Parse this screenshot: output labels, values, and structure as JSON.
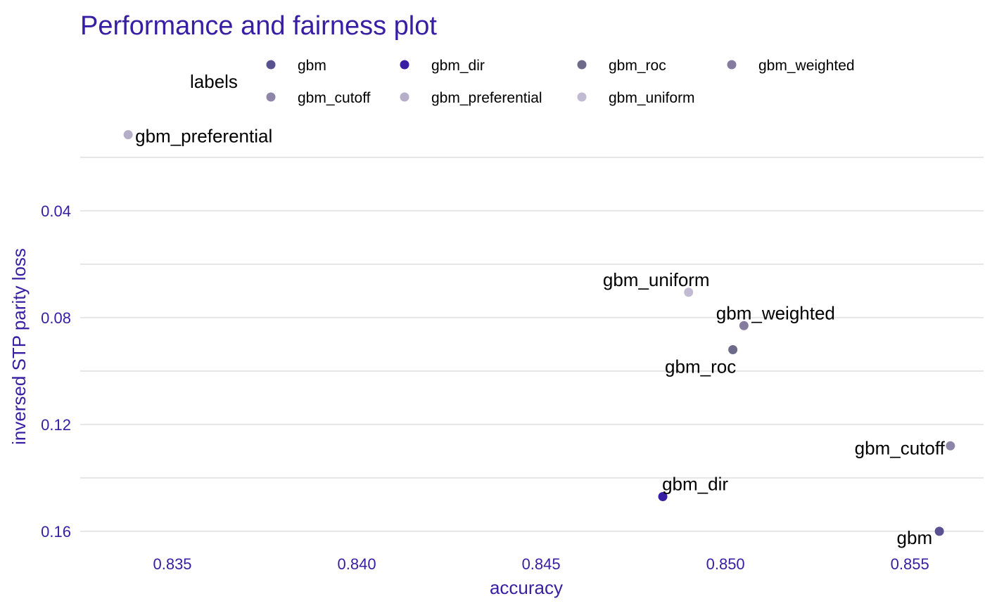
{
  "chart_data": {
    "type": "scatter",
    "title": "Performance and fairness plot",
    "xlabel": "accuracy",
    "ylabel": "inversed STP parity loss",
    "xlim": [
      0.8325,
      0.857
    ],
    "ylim": [
      0.0195,
      0.1645
    ],
    "y_reversed": true,
    "x_ticks": [
      0.835,
      0.84,
      0.845,
      0.85,
      0.855
    ],
    "x_tick_labels": [
      "0.835",
      "0.840",
      "0.845",
      "0.850",
      "0.855"
    ],
    "y_ticks": [
      0.04,
      0.08,
      0.12,
      0.16
    ],
    "y_tick_labels": [
      "0.04",
      "0.08",
      "0.12",
      "0.16"
    ],
    "y_minor_gridlines": [
      0.02,
      0.06,
      0.1,
      0.14
    ],
    "grid": true,
    "legend": {
      "title": "labels",
      "position": "top",
      "entries": [
        "gbm",
        "gbm_dir",
        "gbm_roc",
        "gbm_weighted",
        "gbm_cutoff",
        "gbm_preferential",
        "gbm_uniform"
      ]
    },
    "series": [
      {
        "name": "gbm",
        "x": 0.8558,
        "y": 0.16,
        "color": "#5a5290"
      },
      {
        "name": "gbm_dir",
        "x": 0.8483,
        "y": 0.147,
        "color": "#371ea3"
      },
      {
        "name": "gbm_roc",
        "x": 0.8502,
        "y": 0.092,
        "color": "#6e6a8a"
      },
      {
        "name": "gbm_weighted",
        "x": 0.8505,
        "y": 0.083,
        "color": "#847c9e"
      },
      {
        "name": "gbm_cutoff",
        "x": 0.8561,
        "y": 0.128,
        "color": "#8e86a8"
      },
      {
        "name": "gbm_preferential",
        "x": 0.8338,
        "y": 0.0115,
        "color": "#b4aec8"
      },
      {
        "name": "gbm_uniform",
        "x": 0.849,
        "y": 0.0705,
        "color": "#c0bbd2"
      }
    ]
  }
}
